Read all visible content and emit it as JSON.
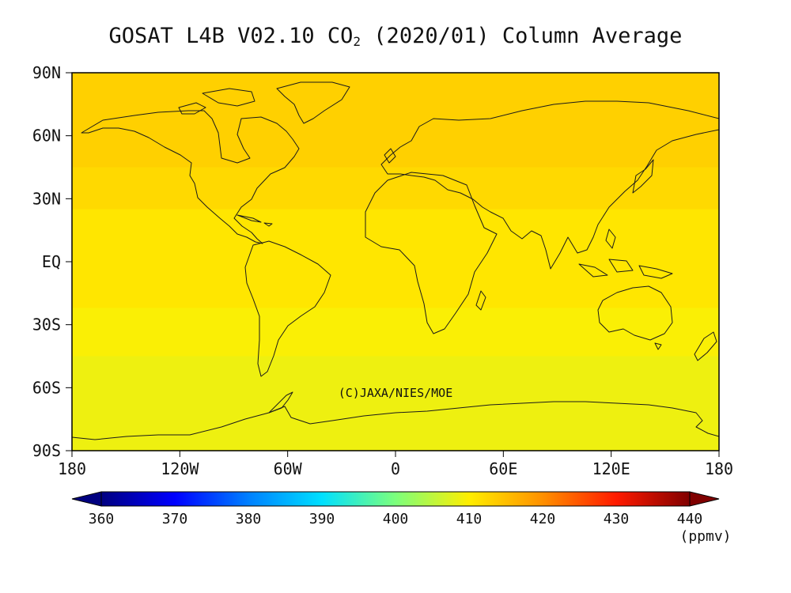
{
  "title": {
    "prefix": "GOSAT L4B V02.10 CO",
    "subscript": "2",
    "suffix": " (2020/01) Column Average"
  },
  "credit": "(C)JAXA/NIES/MOE",
  "map": {
    "projection": "equirectangular",
    "lon_range": [
      -180,
      180
    ],
    "lat_range": [
      -90,
      90
    ],
    "lat_ticks": [
      {
        "lat": 90,
        "label": "90N"
      },
      {
        "lat": 60,
        "label": "60N"
      },
      {
        "lat": 30,
        "label": "30N"
      },
      {
        "lat": 0,
        "label": "EQ"
      },
      {
        "lat": -30,
        "label": "30S"
      },
      {
        "lat": -60,
        "label": "60S"
      },
      {
        "lat": -90,
        "label": "90S"
      }
    ],
    "lon_ticks": [
      {
        "lon": -180,
        "label": "180"
      },
      {
        "lon": -120,
        "label": "120W"
      },
      {
        "lon": -60,
        "label": "60W"
      },
      {
        "lon": 0,
        "label": "0"
      },
      {
        "lon": 60,
        "label": "60E"
      },
      {
        "lon": 120,
        "label": "120E"
      },
      {
        "lon": 180,
        "label": "180"
      }
    ],
    "field_bands": [
      {
        "lat_top": 90,
        "lat_bottom": 45,
        "ppmv": 413.2
      },
      {
        "lat_top": 45,
        "lat_bottom": 25,
        "ppmv": 412.2
      },
      {
        "lat_top": 25,
        "lat_bottom": -22,
        "ppmv": 410.8
      },
      {
        "lat_top": -22,
        "lat_bottom": -45,
        "ppmv": 409.6
      },
      {
        "lat_top": -45,
        "lat_bottom": -90,
        "ppmv": 408.7
      }
    ]
  },
  "colorbar": {
    "min": 360,
    "max": 440,
    "unit": "(ppmv)",
    "ticks": [
      "360",
      "370",
      "380",
      "390",
      "400",
      "410",
      "420",
      "430",
      "440"
    ],
    "stops": [
      {
        "value": 360,
        "color": "#000080"
      },
      {
        "value": 370,
        "color": "#0000ff"
      },
      {
        "value": 380,
        "color": "#0080ff"
      },
      {
        "value": 390,
        "color": "#00e0ff"
      },
      {
        "value": 400,
        "color": "#7cff7c"
      },
      {
        "value": 410,
        "color": "#ffee00"
      },
      {
        "value": 420,
        "color": "#ff9000"
      },
      {
        "value": 430,
        "color": "#ff1a00"
      },
      {
        "value": 440,
        "color": "#800000"
      }
    ]
  }
}
